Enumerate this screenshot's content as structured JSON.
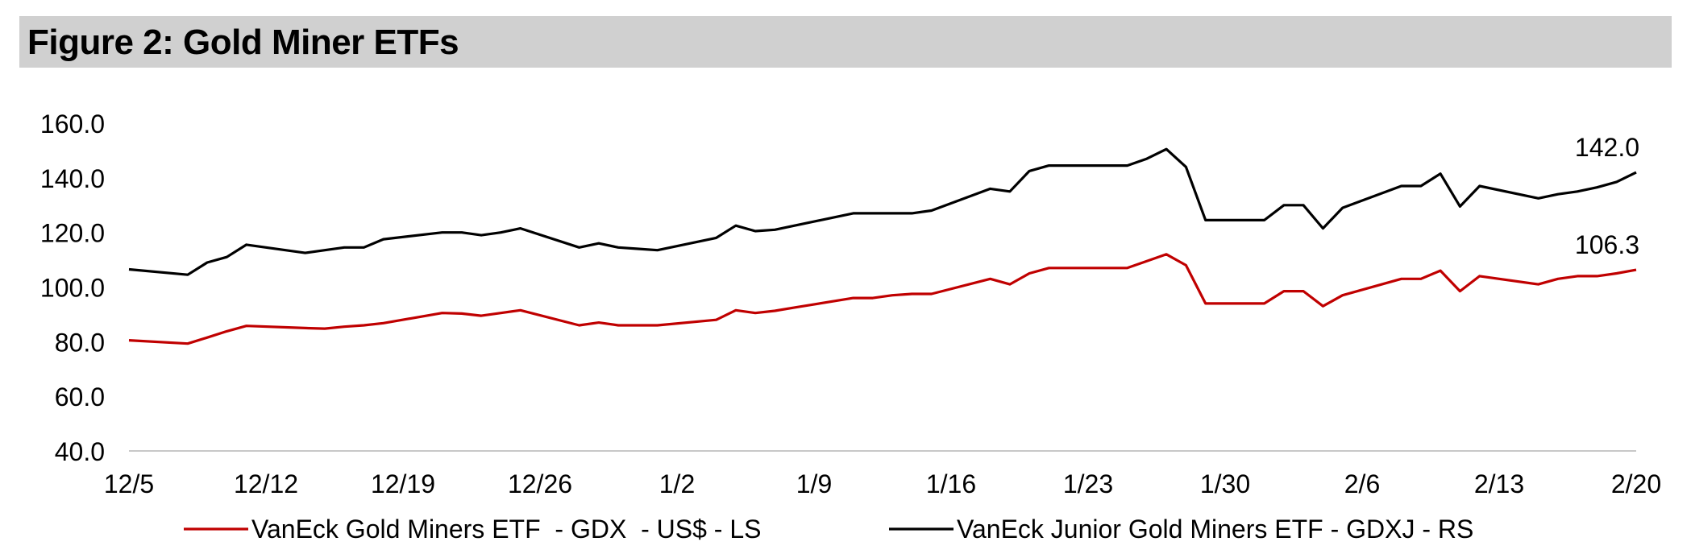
{
  "figure_title": "Figure 2: Gold Miner ETFs",
  "chart_data": {
    "type": "line",
    "title": "Figure 2: Gold Miner ETFs",
    "xlabel": "",
    "ylabel": "",
    "ylim": [
      40,
      160
    ],
    "yticks": [
      "40.0",
      "60.0",
      "80.0",
      "100.0",
      "120.0",
      "140.0",
      "160.0"
    ],
    "x_tick_labels": [
      "12/5",
      "12/12",
      "12/19",
      "12/26",
      "1/2",
      "1/9",
      "1/16",
      "1/23",
      "1/30",
      "2/6",
      "2/13",
      "2/20"
    ],
    "x_tick_dates": [
      "12-05",
      "12-12",
      "12-19",
      "12-26",
      "01-02",
      "01-09",
      "01-16",
      "01-23",
      "01-30",
      "02-06",
      "02-13",
      "02-20"
    ],
    "dates": [
      "12-05",
      "12-08",
      "12-09",
      "12-10",
      "12-11",
      "12-14",
      "12-15",
      "12-16",
      "12-17",
      "12-18",
      "12-21",
      "12-22",
      "12-23",
      "12-24",
      "12-25",
      "12-28",
      "12-29",
      "12-30",
      "12-31",
      "01-01",
      "01-04",
      "01-05",
      "01-06",
      "01-07",
      "01-08",
      "01-11",
      "01-12",
      "01-13",
      "01-14",
      "01-15",
      "01-18",
      "01-19",
      "01-20",
      "01-21",
      "01-22",
      "01-25",
      "01-26",
      "01-27",
      "01-28",
      "01-29",
      "02-01",
      "02-02",
      "02-03",
      "02-04",
      "02-05",
      "02-08",
      "02-09",
      "02-10",
      "02-11",
      "02-12",
      "02-15",
      "02-16",
      "02-17",
      "02-18",
      "02-19",
      "02-20"
    ],
    "series": [
      {
        "name": "VanEck Gold Miners ETF  - GDX  - US$ - LS",
        "color": "#c00000",
        "axis": "left",
        "values": [
          80.5,
          79.3,
          81.5,
          83.8,
          85.8,
          85.0,
          84.8,
          85.5,
          86.0,
          86.8,
          90.5,
          90.3,
          89.5,
          90.5,
          91.5,
          86.0,
          87.0,
          86.0,
          86.0,
          86.0,
          88.0,
          91.5,
          90.5,
          91.3,
          92.5,
          96.0,
          96.0,
          97.0,
          97.5,
          97.5,
          103.0,
          101.0,
          105.0,
          107.0,
          107.0,
          107.0,
          109.5,
          112.0,
          108.0,
          94.0,
          94.0,
          98.5,
          98.5,
          93.0,
          97.0,
          103.0,
          103.0,
          106.0,
          98.5,
          104.0,
          101.0,
          103.0,
          104.0,
          104.0,
          105.0,
          106.3
        ],
        "last_label": "106.3"
      },
      {
        "name": "VanEck Junior Gold Miners ETF - GDXJ - RS",
        "color": "#000000",
        "axis": "right",
        "values": [
          106.5,
          104.5,
          109.0,
          111.0,
          115.5,
          112.5,
          113.5,
          114.5,
          114.5,
          117.5,
          120.0,
          120.0,
          119.0,
          120.0,
          121.5,
          114.5,
          116.0,
          114.5,
          114.0,
          113.5,
          118.0,
          122.5,
          120.5,
          121.0,
          122.5,
          127.0,
          127.0,
          127.0,
          127.0,
          128.0,
          136.0,
          135.0,
          142.5,
          144.5,
          144.5,
          144.5,
          147.0,
          150.5,
          144.0,
          124.5,
          124.5,
          130.0,
          130.0,
          121.5,
          129.0,
          137.0,
          137.0,
          141.5,
          129.5,
          137.0,
          132.5,
          134.0,
          135.0,
          136.5,
          138.5,
          142.0
        ],
        "last_label": "142.0"
      }
    ],
    "legend": [
      "VanEck Gold Miners ETF  - GDX  - US$ - LS",
      "VanEck Junior Gold Miners ETF - GDXJ - RS"
    ],
    "legend_position": "bottom",
    "grid": false
  }
}
